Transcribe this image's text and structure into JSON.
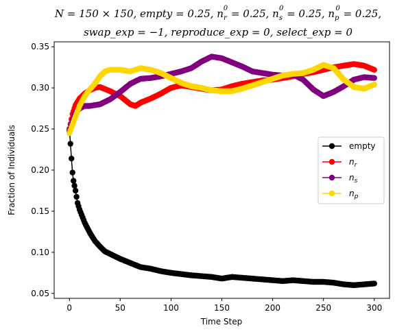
{
  "chart_data": {
    "type": "line",
    "title_lines": [
      "N = 150 × 150, empty = 0.25, n_r^0 = 0.25, n_s^0 = 0.25, n_p^0 = 0.25,",
      "swap_exp = −1, reproduce_exp = 0, select_exp = 0"
    ],
    "xlabel": "Time Step",
    "ylabel": "Fraction of Individuals",
    "xlim": [
      -15,
      315
    ],
    "ylim": [
      0.044,
      0.356
    ],
    "xticks": [
      0,
      50,
      100,
      150,
      200,
      250,
      300
    ],
    "yticks": [
      0.05,
      0.1,
      0.15,
      0.2,
      0.25,
      0.3,
      0.35
    ],
    "ytick_labels": [
      "0.05",
      "0.10",
      "0.15",
      "0.20",
      "0.25",
      "0.30",
      "0.35"
    ],
    "grid": false,
    "legend_position": "center-right",
    "series": [
      {
        "name": "empty",
        "color": "#000000",
        "anchors": [
          [
            0,
            0.25
          ],
          [
            1,
            0.232
          ],
          [
            2,
            0.214
          ],
          [
            3,
            0.197
          ],
          [
            4,
            0.187
          ],
          [
            6,
            0.175
          ],
          [
            8,
            0.16
          ],
          [
            10,
            0.152
          ],
          [
            15,
            0.136
          ],
          [
            20,
            0.124
          ],
          [
            25,
            0.114
          ],
          [
            30,
            0.107
          ],
          [
            35,
            0.101
          ],
          [
            40,
            0.098
          ],
          [
            50,
            0.092
          ],
          [
            60,
            0.087
          ],
          [
            70,
            0.082
          ],
          [
            80,
            0.08
          ],
          [
            90,
            0.077
          ],
          [
            100,
            0.075
          ],
          [
            120,
            0.072
          ],
          [
            140,
            0.07
          ],
          [
            150,
            0.068
          ],
          [
            160,
            0.07
          ],
          [
            170,
            0.069
          ],
          [
            180,
            0.068
          ],
          [
            190,
            0.067
          ],
          [
            200,
            0.066
          ],
          [
            210,
            0.065
          ],
          [
            220,
            0.066
          ],
          [
            230,
            0.065
          ],
          [
            240,
            0.064
          ],
          [
            250,
            0.064
          ],
          [
            260,
            0.063
          ],
          [
            270,
            0.061
          ],
          [
            280,
            0.06
          ],
          [
            290,
            0.061
          ],
          [
            300,
            0.062
          ]
        ]
      },
      {
        "name": "n_r",
        "color": "#ff0000",
        "anchors": [
          [
            0,
            0.25
          ],
          [
            3,
            0.268
          ],
          [
            6,
            0.279
          ],
          [
            10,
            0.287
          ],
          [
            15,
            0.293
          ],
          [
            20,
            0.297
          ],
          [
            25,
            0.3
          ],
          [
            30,
            0.301
          ],
          [
            40,
            0.296
          ],
          [
            50,
            0.29
          ],
          [
            55,
            0.285
          ],
          [
            60,
            0.28
          ],
          [
            65,
            0.278
          ],
          [
            70,
            0.282
          ],
          [
            80,
            0.287
          ],
          [
            90,
            0.293
          ],
          [
            100,
            0.3
          ],
          [
            110,
            0.303
          ],
          [
            120,
            0.301
          ],
          [
            130,
            0.299
          ],
          [
            140,
            0.297
          ],
          [
            150,
            0.298
          ],
          [
            160,
            0.302
          ],
          [
            170,
            0.305
          ],
          [
            180,
            0.307
          ],
          [
            190,
            0.309
          ],
          [
            200,
            0.31
          ],
          [
            210,
            0.312
          ],
          [
            220,
            0.314
          ],
          [
            230,
            0.317
          ],
          [
            240,
            0.319
          ],
          [
            250,
            0.322
          ],
          [
            260,
            0.325
          ],
          [
            270,
            0.327
          ],
          [
            280,
            0.329
          ],
          [
            290,
            0.327
          ],
          [
            300,
            0.322
          ]
        ]
      },
      {
        "name": "n_s",
        "color": "#800080",
        "anchors": [
          [
            0,
            0.247
          ],
          [
            5,
            0.268
          ],
          [
            10,
            0.275
          ],
          [
            15,
            0.278
          ],
          [
            20,
            0.278
          ],
          [
            30,
            0.28
          ],
          [
            40,
            0.286
          ],
          [
            50,
            0.295
          ],
          [
            60,
            0.305
          ],
          [
            70,
            0.311
          ],
          [
            80,
            0.312
          ],
          [
            90,
            0.314
          ],
          [
            100,
            0.317
          ],
          [
            110,
            0.32
          ],
          [
            120,
            0.324
          ],
          [
            130,
            0.332
          ],
          [
            140,
            0.338
          ],
          [
            150,
            0.336
          ],
          [
            160,
            0.331
          ],
          [
            170,
            0.326
          ],
          [
            180,
            0.32
          ],
          [
            190,
            0.318
          ],
          [
            200,
            0.316
          ],
          [
            210,
            0.315
          ],
          [
            220,
            0.316
          ],
          [
            230,
            0.31
          ],
          [
            240,
            0.298
          ],
          [
            250,
            0.29
          ],
          [
            260,
            0.295
          ],
          [
            270,
            0.302
          ],
          [
            280,
            0.31
          ],
          [
            290,
            0.313
          ],
          [
            300,
            0.312
          ]
        ]
      },
      {
        "name": "n_p",
        "color": "#ffd700",
        "anchors": [
          [
            0,
            0.245
          ],
          [
            5,
            0.262
          ],
          [
            10,
            0.278
          ],
          [
            15,
            0.29
          ],
          [
            20,
            0.298
          ],
          [
            25,
            0.305
          ],
          [
            30,
            0.314
          ],
          [
            35,
            0.32
          ],
          [
            40,
            0.322
          ],
          [
            50,
            0.322
          ],
          [
            60,
            0.32
          ],
          [
            70,
            0.324
          ],
          [
            80,
            0.322
          ],
          [
            90,
            0.318
          ],
          [
            100,
            0.312
          ],
          [
            110,
            0.306
          ],
          [
            120,
            0.302
          ],
          [
            130,
            0.3
          ],
          [
            140,
            0.297
          ],
          [
            150,
            0.296
          ],
          [
            160,
            0.296
          ],
          [
            170,
            0.299
          ],
          [
            180,
            0.303
          ],
          [
            190,
            0.307
          ],
          [
            200,
            0.311
          ],
          [
            210,
            0.315
          ],
          [
            220,
            0.317
          ],
          [
            230,
            0.318
          ],
          [
            240,
            0.322
          ],
          [
            250,
            0.328
          ],
          [
            260,
            0.324
          ],
          [
            270,
            0.31
          ],
          [
            280,
            0.301
          ],
          [
            290,
            0.299
          ],
          [
            300,
            0.304
          ]
        ]
      }
    ]
  },
  "legend": {
    "items": [
      {
        "label": "empty",
        "color": "#000000"
      },
      {
        "label": "n",
        "sub": "r",
        "color": "#ff0000"
      },
      {
        "label": "n",
        "sub": "s",
        "color": "#800080"
      },
      {
        "label": "n",
        "sub": "p",
        "color": "#ffd700"
      }
    ]
  }
}
